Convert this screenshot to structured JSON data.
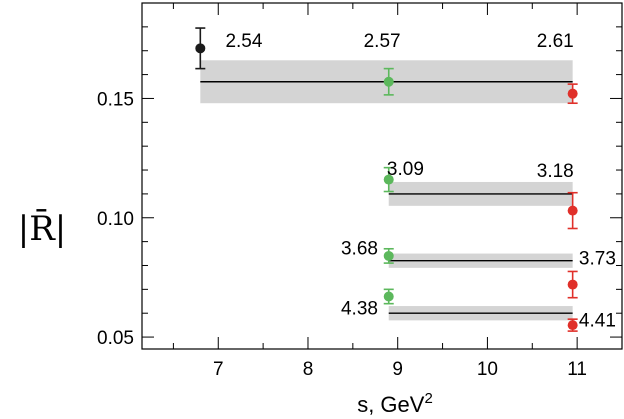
{
  "chart_data": {
    "type": "scatter",
    "xlabel": "s, GeV",
    "xlabel_sup": "2",
    "ylabel": "|R̄|",
    "xlim": [
      6.15,
      11.5
    ],
    "ylim": [
      0.045,
      0.19
    ],
    "x_ticks": [
      7,
      8,
      9,
      10,
      11
    ],
    "x_tick_labels": [
      "7",
      "8",
      "9",
      "10",
      "11"
    ],
    "y_ticks": [
      0.05,
      0.1,
      0.15
    ],
    "y_tick_labels": [
      "0.05",
      "0.10",
      "0.15"
    ],
    "grid": false,
    "bands": [
      {
        "x_start": 6.8,
        "x_end": 10.95,
        "y": 0.157,
        "y_low": 0.148,
        "y_high": 0.166
      },
      {
        "x_start": 8.9,
        "x_end": 10.95,
        "y": 0.11,
        "y_low": 0.105,
        "y_high": 0.115
      },
      {
        "x_start": 8.9,
        "x_end": 10.95,
        "y": 0.082,
        "y_low": 0.079,
        "y_high": 0.085
      },
      {
        "x_start": 8.9,
        "x_end": 10.95,
        "y": 0.06,
        "y_low": 0.057,
        "y_high": 0.063
      }
    ],
    "series": [
      {
        "color": "#1a1a1a",
        "points": [
          {
            "x": 6.8,
            "y": 0.171,
            "err": 0.0085
          }
        ]
      },
      {
        "color": "#5cb85c",
        "points": [
          {
            "x": 8.9,
            "y": 0.157,
            "err": 0.0055
          },
          {
            "x": 8.9,
            "y": 0.116,
            "err": 0.005
          },
          {
            "x": 8.9,
            "y": 0.084,
            "err": 0.003
          },
          {
            "x": 8.9,
            "y": 0.067,
            "err": 0.003
          }
        ]
      },
      {
        "color": "#e0302a",
        "points": [
          {
            "x": 10.95,
            "y": 0.152,
            "err": 0.004
          },
          {
            "x": 10.95,
            "y": 0.103,
            "err": 0.0075
          },
          {
            "x": 10.95,
            "y": 0.072,
            "err": 0.0055
          },
          {
            "x": 10.95,
            "y": 0.055,
            "err": 0.0025
          }
        ]
      }
    ],
    "annotations": [
      {
        "text": "2.54",
        "x": 7.08,
        "y": 0.1715,
        "anchor": "start"
      },
      {
        "text": "2.57",
        "x": 8.62,
        "y": 0.1715,
        "anchor": "start"
      },
      {
        "text": "2.61",
        "x": 10.55,
        "y": 0.1715,
        "anchor": "start"
      },
      {
        "text": "3.09",
        "x": 8.88,
        "y": 0.118,
        "anchor": "start"
      },
      {
        "text": "3.18",
        "x": 10.55,
        "y": 0.117,
        "anchor": "start"
      },
      {
        "text": "3.68",
        "x": 8.78,
        "y": 0.0845,
        "anchor": "end"
      },
      {
        "text": "3.73",
        "x": 11.02,
        "y": 0.0805,
        "anchor": "start"
      },
      {
        "text": "4.38",
        "x": 8.78,
        "y": 0.0595,
        "anchor": "end"
      },
      {
        "text": "4.41",
        "x": 11.02,
        "y": 0.0545,
        "anchor": "start"
      }
    ]
  }
}
